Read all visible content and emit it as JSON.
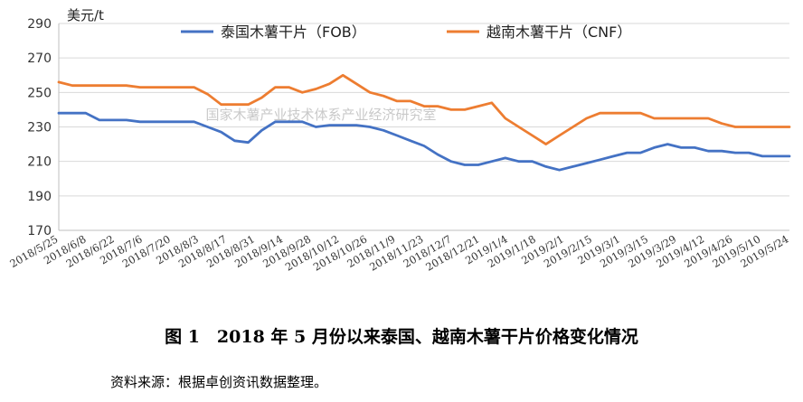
{
  "chart_data": {
    "type": "line",
    "ylabel": "美元/t",
    "ylim": [
      170,
      290
    ],
    "yticks": [
      170,
      190,
      210,
      230,
      250,
      270,
      290
    ],
    "watermark": "国家木薯产业技术体系产业经济研究室",
    "legend_position": "top-center",
    "x_tick_labels": [
      "2018/5/25",
      "2018/6/8",
      "2018/6/22",
      "2018/7/6",
      "2018/7/20",
      "2018/8/3",
      "2018/8/17",
      "2018/8/31",
      "2018/9/14",
      "2018/9/28",
      "2018/10/12",
      "2018/10/26",
      "2018/11/9",
      "2018/11/23",
      "2018/12/7",
      "2018/12/21",
      "2019/1/4",
      "2019/1/18",
      "2019/2/1",
      "2019/2/15",
      "2019/3/1",
      "2019/3/15",
      "2019/3/29",
      "2019/4/12",
      "2019/4/26",
      "2019/5/10",
      "2019/5/24"
    ],
    "series": [
      {
        "name": "泰国木薯干片（FOB）",
        "color": "#4472C4",
        "values": [
          238,
          238,
          238,
          234,
          234,
          234,
          233,
          233,
          233,
          233,
          233,
          230,
          227,
          222,
          221,
          228,
          233,
          233,
          233,
          230,
          231,
          231,
          231,
          230,
          228,
          225,
          222,
          219,
          214,
          210,
          208,
          208,
          210,
          212,
          210,
          210,
          207,
          205,
          207,
          209,
          211,
          213,
          215,
          215,
          218,
          220,
          218,
          218,
          216,
          216,
          215,
          215,
          213,
          213,
          213
        ]
      },
      {
        "name": "越南木薯干片（CNF）",
        "color": "#ED7D31",
        "values": [
          256,
          254,
          254,
          254,
          254,
          254,
          253,
          253,
          253,
          253,
          253,
          249,
          243,
          243,
          243,
          247,
          253,
          253,
          250,
          252,
          255,
          260,
          255,
          250,
          248,
          245,
          245,
          242,
          242,
          240,
          240,
          242,
          244,
          235,
          230,
          225,
          220,
          225,
          230,
          235,
          238,
          238,
          238,
          238,
          235,
          235,
          235,
          235,
          235,
          232,
          230,
          230,
          230,
          230,
          230
        ]
      }
    ]
  },
  "caption": "图 1　2018 年 5 月份以来泰国、越南木薯干片价格变化情况",
  "source": "资料来源：根据卓创资讯数据整理。"
}
